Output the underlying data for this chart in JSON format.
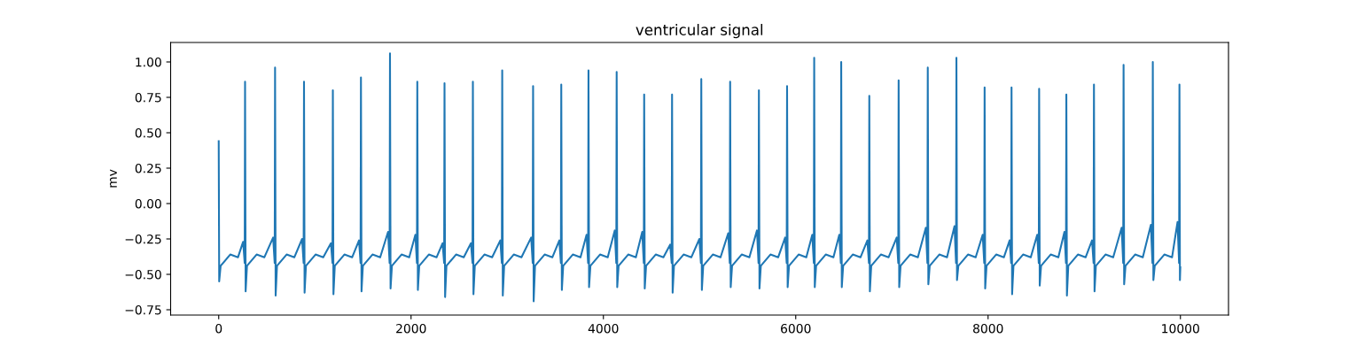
{
  "chart_data": {
    "type": "line",
    "title": "ventricular signal",
    "ylabel": "mv",
    "xlim": [
      -500,
      10500
    ],
    "xticks": [
      0,
      2000,
      4000,
      6000,
      8000,
      10000
    ],
    "ylim": [
      -0.7875,
      1.1375
    ],
    "yticks": [
      {
        "value": -0.75,
        "label": "−0.75"
      },
      {
        "value": -0.5,
        "label": "−0.50"
      },
      {
        "value": -0.25,
        "label": "−0.25"
      },
      {
        "value": 0,
        "label": "0.00"
      },
      {
        "value": 0.25,
        "label": "0.25"
      },
      {
        "value": 0.5,
        "label": "0.50"
      },
      {
        "value": 0.75,
        "label": "0.75"
      },
      {
        "value": 1.0,
        "label": "1.00"
      }
    ],
    "grid": false,
    "marker": "none",
    "line_style": "solid",
    "series": [
      {
        "color": "#1f77b4",
        "x": [
          0,
          5,
          20,
          120,
          200,
          254,
          270,
          274,
          280,
          294,
          394,
          474,
          566,
          582,
          586,
          592,
          606,
          706,
          786,
          867,
          883,
          887,
          893,
          907,
          1007,
          1087,
          1167,
          1183,
          1187,
          1193,
          1207,
          1307,
          1387,
          1459,
          1475,
          1479,
          1485,
          1499,
          1599,
          1679,
          1761,
          1777,
          1781,
          1787,
          1801,
          1901,
          1981,
          2045,
          2061,
          2065,
          2071,
          2085,
          2185,
          2265,
          2328,
          2344,
          2348,
          2354,
          2368,
          2468,
          2548,
          2623,
          2639,
          2643,
          2649,
          2663,
          2763,
          2843,
          2928,
          2944,
          2948,
          2954,
          2968,
          3068,
          3148,
          3249,
          3265,
          3269,
          3275,
          3289,
          3389,
          3469,
          3542,
          3558,
          3562,
          3568,
          3582,
          3682,
          3762,
          3825,
          3841,
          3845,
          3851,
          3865,
          3965,
          4045,
          4118,
          4134,
          4138,
          4144,
          4158,
          4258,
          4338,
          4404,
          4420,
          4424,
          4430,
          4444,
          4544,
          4624,
          4694,
          4710,
          4714,
          4720,
          4734,
          4834,
          4914,
          4998,
          5014,
          5018,
          5024,
          5038,
          5138,
          5218,
          5298,
          5314,
          5318,
          5324,
          5338,
          5438,
          5518,
          5597,
          5613,
          5617,
          5623,
          5637,
          5737,
          5817,
          5890,
          5906,
          5910,
          5916,
          5930,
          6030,
          6110,
          6172,
          6188,
          6192,
          6198,
          6212,
          6312,
          6392,
          6453,
          6469,
          6473,
          6479,
          6493,
          6593,
          6673,
          6745,
          6761,
          6765,
          6771,
          6785,
          6885,
          6965,
          7050,
          7066,
          7070,
          7076,
          7090,
          7190,
          7270,
          7353,
          7369,
          7373,
          7379,
          7393,
          7493,
          7573,
          7651,
          7667,
          7671,
          7677,
          7691,
          7791,
          7871,
          7944,
          7960,
          7964,
          7970,
          7984,
          8084,
          8164,
          8224,
          8240,
          8244,
          8250,
          8264,
          8364,
          8444,
          8511,
          8527,
          8531,
          8537,
          8551,
          8651,
          8731,
          8794,
          8810,
          8814,
          8820,
          8834,
          8934,
          9014,
          9081,
          9097,
          9101,
          9107,
          9121,
          9221,
          9301,
          9389,
          9405,
          9409,
          9415,
          9429,
          9529,
          9609,
          9693,
          9709,
          9713,
          9719,
          9733,
          9833,
          9913,
          9970,
          9986,
          9990,
          9995,
          9999
        ],
        "values": [
          0.44,
          -0.55,
          -0.44,
          -0.36,
          -0.38,
          -0.27,
          -0.42,
          0.86,
          -0.62,
          -0.44,
          -0.36,
          -0.38,
          -0.24,
          -0.42,
          0.96,
          -0.65,
          -0.44,
          -0.36,
          -0.38,
          -0.25,
          -0.42,
          0.86,
          -0.63,
          -0.44,
          -0.36,
          -0.38,
          -0.28,
          -0.42,
          0.8,
          -0.64,
          -0.44,
          -0.36,
          -0.38,
          -0.26,
          -0.42,
          0.89,
          -0.62,
          -0.44,
          -0.36,
          -0.38,
          -0.2,
          -0.42,
          1.06,
          -0.6,
          -0.44,
          -0.36,
          -0.38,
          -0.22,
          -0.42,
          0.86,
          -0.61,
          -0.44,
          -0.36,
          -0.38,
          -0.28,
          -0.42,
          0.85,
          -0.66,
          -0.44,
          -0.36,
          -0.38,
          -0.28,
          -0.42,
          0.86,
          -0.64,
          -0.44,
          -0.36,
          -0.38,
          -0.26,
          -0.42,
          0.94,
          -0.65,
          -0.44,
          -0.36,
          -0.38,
          -0.24,
          -0.42,
          0.83,
          -0.69,
          -0.44,
          -0.36,
          -0.38,
          -0.26,
          -0.42,
          0.84,
          -0.61,
          -0.44,
          -0.36,
          -0.38,
          -0.22,
          -0.42,
          0.94,
          -0.59,
          -0.44,
          -0.36,
          -0.38,
          -0.19,
          -0.42,
          0.93,
          -0.59,
          -0.44,
          -0.36,
          -0.38,
          -0.2,
          -0.42,
          0.77,
          -0.6,
          -0.44,
          -0.36,
          -0.38,
          -0.29,
          -0.42,
          0.77,
          -0.63,
          -0.44,
          -0.36,
          -0.38,
          -0.25,
          -0.42,
          0.88,
          -0.61,
          -0.44,
          -0.36,
          -0.38,
          -0.21,
          -0.42,
          0.86,
          -0.59,
          -0.44,
          -0.36,
          -0.38,
          -0.19,
          -0.42,
          0.8,
          -0.6,
          -0.44,
          -0.36,
          -0.38,
          -0.24,
          -0.42,
          0.83,
          -0.59,
          -0.44,
          -0.36,
          -0.38,
          -0.22,
          -0.42,
          1.03,
          -0.59,
          -0.44,
          -0.36,
          -0.38,
          -0.22,
          -0.42,
          1.0,
          -0.59,
          -0.44,
          -0.36,
          -0.38,
          -0.26,
          -0.42,
          0.76,
          -0.62,
          -0.44,
          -0.36,
          -0.38,
          -0.24,
          -0.42,
          0.87,
          -0.59,
          -0.44,
          -0.36,
          -0.38,
          -0.17,
          -0.42,
          0.96,
          -0.57,
          -0.44,
          -0.36,
          -0.38,
          -0.16,
          -0.42,
          1.03,
          -0.54,
          -0.44,
          -0.36,
          -0.38,
          -0.22,
          -0.42,
          0.82,
          -0.6,
          -0.44,
          -0.36,
          -0.38,
          -0.26,
          -0.42,
          0.82,
          -0.64,
          -0.44,
          -0.36,
          -0.38,
          -0.22,
          -0.42,
          0.81,
          -0.58,
          -0.44,
          -0.36,
          -0.38,
          -0.2,
          -0.42,
          0.77,
          -0.65,
          -0.44,
          -0.36,
          -0.38,
          -0.26,
          -0.42,
          0.84,
          -0.62,
          -0.44,
          -0.36,
          -0.38,
          -0.17,
          -0.42,
          0.98,
          -0.57,
          -0.44,
          -0.36,
          -0.38,
          -0.15,
          -0.42,
          1.0,
          -0.54,
          -0.44,
          -0.36,
          -0.38,
          -0.13,
          -0.42,
          0.84,
          -0.54,
          -0.45
        ]
      }
    ]
  }
}
